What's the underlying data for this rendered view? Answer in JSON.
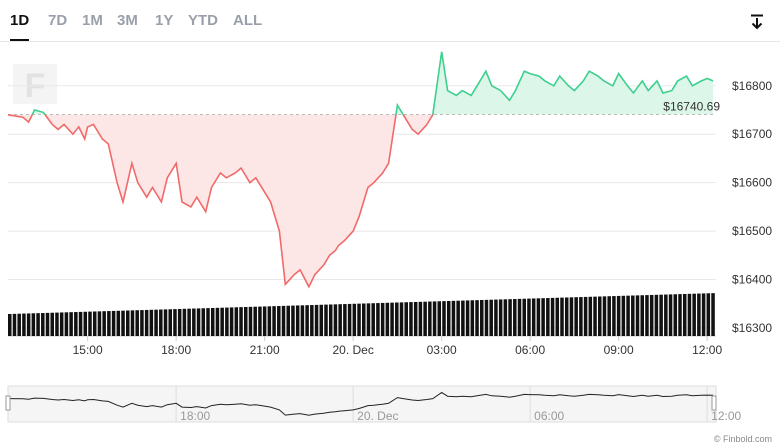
{
  "range_tabs": [
    "1D",
    "7D",
    "1M",
    "3M",
    "1Y",
    "YTD",
    "ALL"
  ],
  "active_tab": "1D",
  "watermark_letter": "F",
  "credit": "© Finbold.com",
  "colors": {
    "down": "#f06a6a",
    "up": "#3ecf8e",
    "down_fill": "#fde3e3",
    "up_fill": "#d8f6e8",
    "volume": "#111111"
  },
  "chart_data": {
    "type": "line",
    "y_ticks": [
      "$16300",
      "$16400",
      "$16500",
      "$16600",
      "$16700",
      "$16800"
    ],
    "y_values": [
      16300,
      16400,
      16500,
      16600,
      16700,
      16800
    ],
    "ylim": [
      16290,
      16880
    ],
    "x_ticks": [
      "15:00",
      "18:00",
      "21:00",
      "20. Dec",
      "03:00",
      "06:00",
      "09:00",
      "12:00"
    ],
    "x_tick_hours": [
      15,
      18,
      21,
      24,
      27,
      30,
      33,
      36
    ],
    "xlim": [
      12.3,
      36.3
    ],
    "reference_price": 16740.69,
    "reference_label": "$16740.69",
    "series": [
      {
        "hours": [
          12.3,
          12.8,
          13.0,
          13.2,
          13.5,
          13.8,
          14.0,
          14.2,
          14.5,
          14.7,
          14.9,
          15.0,
          15.2,
          15.5,
          15.7,
          16.0,
          16.2,
          16.5,
          16.7,
          17.0,
          17.2,
          17.5,
          17.7,
          18.0,
          18.2,
          18.5,
          18.7,
          19.0,
          19.2,
          19.5,
          19.7,
          20.0,
          20.2,
          20.5,
          20.7,
          21.0,
          21.2,
          21.5,
          21.7,
          22.0,
          22.2,
          22.5,
          22.7,
          23.0,
          23.2,
          23.4,
          23.5,
          23.7,
          24.0,
          24.2,
          24.5,
          24.7,
          25.0,
          25.2,
          25.5,
          25.7,
          26.0,
          26.2,
          26.5,
          26.7,
          27.0,
          27.2,
          27.5,
          27.7,
          28.0,
          28.2,
          28.5,
          28.7,
          29.0,
          29.3,
          29.5,
          29.8,
          30.0,
          30.3,
          30.5,
          30.8,
          31.0,
          31.3,
          31.5,
          31.8,
          32.0,
          32.3,
          32.5,
          32.8,
          33.0,
          33.3,
          33.5,
          33.8,
          34.0,
          34.3,
          34.5,
          34.8,
          35.0,
          35.3,
          35.5,
          35.8,
          36.0,
          36.2
        ],
        "prices": [
          16740,
          16735,
          16725,
          16750,
          16745,
          16720,
          16710,
          16720,
          16700,
          16715,
          16690,
          16715,
          16720,
          16690,
          16680,
          16600,
          16560,
          16640,
          16600,
          16570,
          16590,
          16560,
          16610,
          16640,
          16560,
          16550,
          16570,
          16540,
          16590,
          16620,
          16610,
          16620,
          16630,
          16600,
          16610,
          16580,
          16560,
          16500,
          16390,
          16410,
          16420,
          16385,
          16410,
          16430,
          16450,
          16460,
          16470,
          16480,
          16500,
          16530,
          16590,
          16600,
          16620,
          16640,
          16760,
          16740,
          16710,
          16700,
          16720,
          16740,
          16870,
          16790,
          16780,
          16790,
          16780,
          16800,
          16830,
          16800,
          16790,
          16770,
          16790,
          16830,
          16825,
          16820,
          16810,
          16800,
          16820,
          16800,
          16790,
          16810,
          16830,
          16820,
          16810,
          16800,
          16825,
          16800,
          16785,
          16810,
          16790,
          16810,
          16785,
          16790,
          16810,
          16820,
          16800,
          16810,
          16815,
          16810
        ]
      }
    ],
    "navigator_ticks": [
      "18:00",
      "20. Dec",
      "06:00",
      "12:00"
    ],
    "navigator_tick_hours": [
      18,
      24,
      30,
      36
    ]
  }
}
